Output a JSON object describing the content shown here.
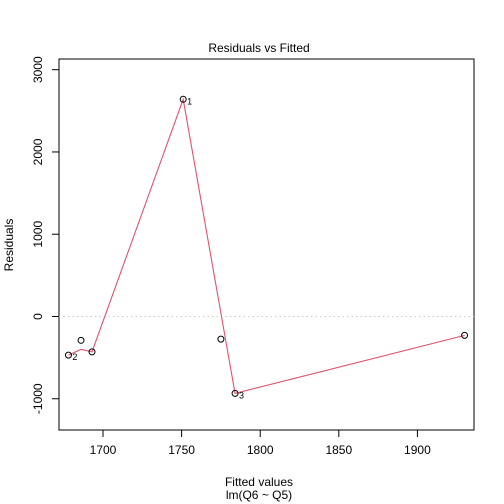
{
  "chart_data": {
    "type": "scatter",
    "title": "Residuals vs Fitted",
    "xlabel": "Fitted values",
    "xlabel_sub": "lm(Q6 ~ Q5)",
    "ylabel": "Residuals",
    "xlim": [
      1672,
      1936
    ],
    "ylim": [
      -1380,
      3130
    ],
    "x_ticks": [
      1700,
      1750,
      1800,
      1850,
      1900
    ],
    "y_ticks": [
      -1000,
      0,
      1000,
      2000,
      3000
    ],
    "x_tick_labels": [
      "1700",
      "1750",
      "1800",
      "1850",
      "1900"
    ],
    "y_tick_labels": [
      "-1000",
      "0",
      "1000",
      "2000",
      "3000"
    ],
    "reference_line": {
      "y": 0,
      "style": "dotted",
      "color": "#cccccc"
    },
    "points": [
      {
        "x": 1678,
        "y": -470,
        "label": "2"
      },
      {
        "x": 1686,
        "y": -290,
        "label": ""
      },
      {
        "x": 1693,
        "y": -430,
        "label": ""
      },
      {
        "x": 1751,
        "y": 2640,
        "label": "1"
      },
      {
        "x": 1775,
        "y": -275,
        "label": ""
      },
      {
        "x": 1784,
        "y": -935,
        "label": "3"
      },
      {
        "x": 1930,
        "y": -230,
        "label": ""
      }
    ],
    "smooth_line": {
      "color": "#df536b",
      "x": [
        1678,
        1686,
        1693,
        1751,
        1784,
        1930
      ],
      "y": [
        -470,
        -400,
        -430,
        2640,
        -935,
        -230
      ]
    },
    "point_color": "#000000",
    "grid": false
  }
}
